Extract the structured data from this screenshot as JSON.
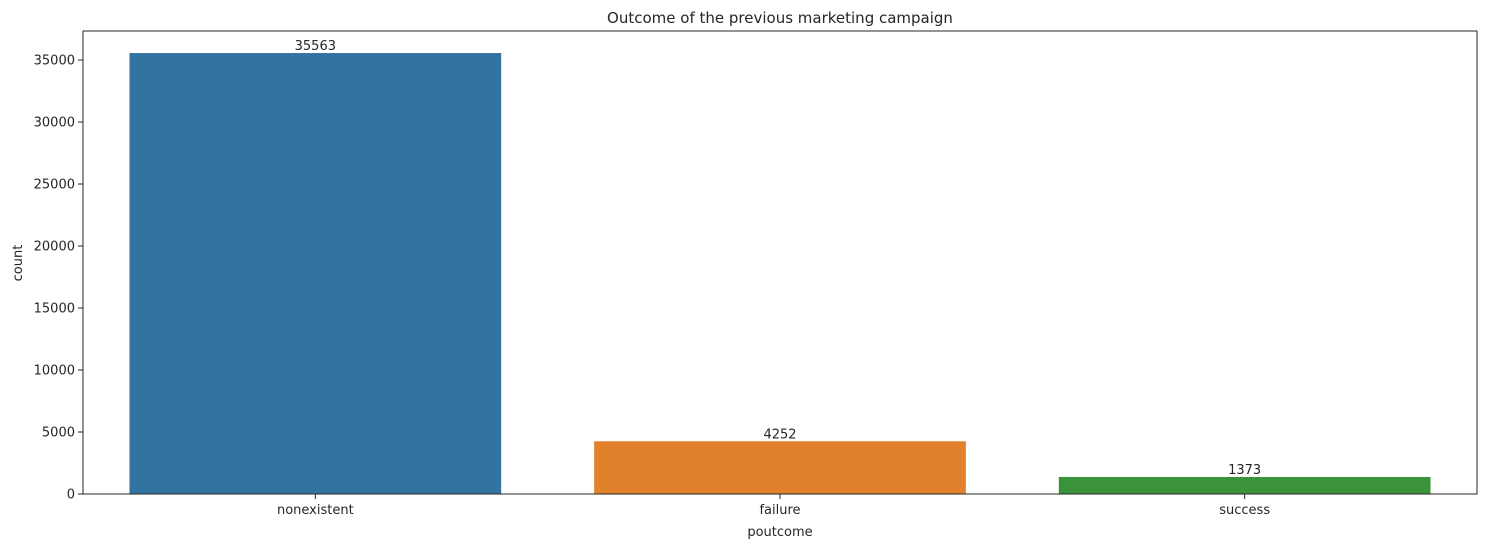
{
  "chart_data": {
    "type": "bar",
    "title": "Outcome of the previous marketing campaign",
    "xlabel": "poutcome",
    "ylabel": "count",
    "categories": [
      "nonexistent",
      "failure",
      "success"
    ],
    "values": [
      35563,
      4252,
      1373
    ],
    "data_labels": [
      "35563",
      "4252",
      "1373"
    ],
    "colors": [
      "#3274a1",
      "#e1812c",
      "#3a923a"
    ],
    "ylim": [
      0,
      37341
    ],
    "yticks": [
      0,
      5000,
      10000,
      15000,
      20000,
      25000,
      30000,
      35000
    ],
    "ytick_labels": [
      "0",
      "5000",
      "10000",
      "15000",
      "20000",
      "25000",
      "30000",
      "35000"
    ],
    "grid": false,
    "legend": "none"
  }
}
